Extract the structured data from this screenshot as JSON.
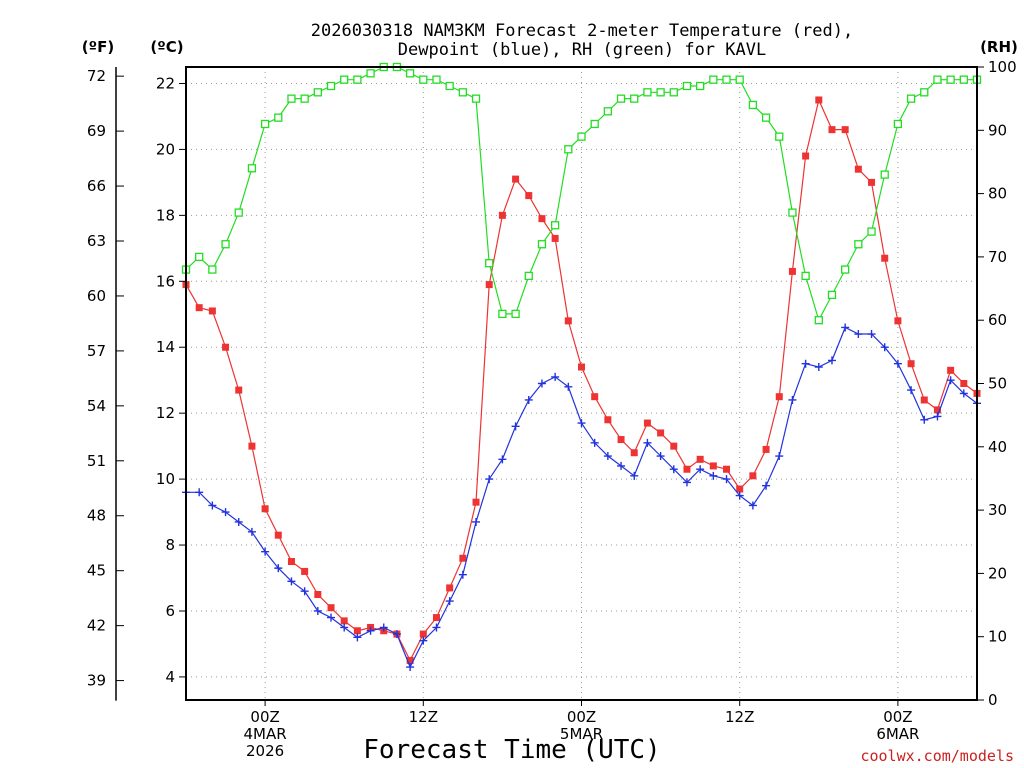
{
  "chart_data": {
    "type": "line",
    "title": "2026030318 NAM3KM Forecast 2-meter Temperature (red),",
    "subtitle": "Dewpoint (blue), RH (green) for KAVL",
    "xlabel": "Forecast Time (UTC)",
    "credit": "coolwx.com/models",
    "unit_labels": {
      "fahrenheit": "(ºF)",
      "celsius": "(ºC)",
      "rh": "(RH)"
    },
    "xlim_hours": [
      -6,
      54
    ],
    "x_ticks": [
      {
        "hour": 0,
        "lines": [
          "00Z",
          "4MAR",
          "2026"
        ]
      },
      {
        "hour": 12,
        "lines": [
          "12Z"
        ]
      },
      {
        "hour": 24,
        "lines": [
          "00Z",
          "5MAR"
        ]
      },
      {
        "hour": 36,
        "lines": [
          "12Z"
        ]
      },
      {
        "hour": 48,
        "lines": [
          "00Z",
          "6MAR"
        ]
      }
    ],
    "y_celsius": {
      "range": [
        3.3,
        22.5
      ],
      "ticks": [
        "4",
        "6",
        "8",
        "10",
        "12",
        "14",
        "16",
        "18",
        "20",
        "22"
      ]
    },
    "y_fahrenheit": {
      "ticks": [
        "39",
        "42",
        "45",
        "48",
        "51",
        "54",
        "57",
        "60",
        "63",
        "66",
        "69",
        "72"
      ]
    },
    "y_rh": {
      "range": [
        0,
        100
      ],
      "ticks": [
        "0",
        "10",
        "20",
        "30",
        "40",
        "50",
        "60",
        "70",
        "80",
        "90",
        "100"
      ]
    },
    "colors": {
      "temperature": "#ee3333",
      "dewpoint": "#2233dd",
      "rh": "#22dd22",
      "grid": "#999999"
    },
    "series": [
      {
        "name": "Temperature (red)",
        "units": "C",
        "start_hour": -6,
        "step_hours": 1,
        "values": [
          15.9,
          15.2,
          15.1,
          14.0,
          12.7,
          11.0,
          9.1,
          8.3,
          7.5,
          7.2,
          6.5,
          6.1,
          5.7,
          5.4,
          5.5,
          5.4,
          5.3,
          4.5,
          5.3,
          5.8,
          6.7,
          7.6,
          9.3,
          15.9,
          18.0,
          19.1,
          18.6,
          17.9,
          17.3,
          14.8,
          13.4,
          12.5,
          11.8,
          11.2,
          10.8,
          11.7,
          11.4,
          11.0,
          10.3,
          10.6,
          10.4,
          10.3,
          9.7,
          10.1,
          10.9,
          12.5,
          16.3,
          19.8,
          21.5,
          20.6,
          20.6,
          19.4,
          19.0,
          16.7,
          14.8,
          13.5,
          12.4,
          12.1,
          13.3,
          12.9,
          12.6
        ]
      },
      {
        "name": "Dewpoint (blue)",
        "units": "C",
        "start_hour": -6,
        "step_hours": 1,
        "values": [
          9.6,
          9.6,
          9.2,
          9.0,
          8.7,
          8.4,
          7.8,
          7.3,
          6.9,
          6.6,
          6.0,
          5.8,
          5.5,
          5.2,
          5.4,
          5.5,
          5.3,
          4.3,
          5.1,
          5.5,
          6.3,
          7.1,
          8.7,
          10.0,
          10.6,
          11.6,
          12.4,
          12.9,
          13.1,
          12.8,
          11.7,
          11.1,
          10.7,
          10.4,
          10.1,
          11.1,
          10.7,
          10.3,
          9.9,
          10.3,
          10.1,
          10.0,
          9.5,
          9.2,
          9.8,
          10.7,
          12.4,
          13.5,
          13.4,
          13.6,
          14.6,
          14.4,
          14.4,
          14.0,
          13.5,
          12.7,
          11.8,
          11.9,
          13.0,
          12.6,
          12.3
        ]
      },
      {
        "name": "RH (green)",
        "units": "%",
        "start_hour": -6,
        "step_hours": 1,
        "values": [
          68,
          70,
          68,
          72,
          77,
          84,
          91,
          92,
          95,
          95,
          96,
          97,
          98,
          98,
          99,
          100,
          100,
          99,
          98,
          98,
          97,
          96,
          95,
          69,
          61,
          61,
          67,
          72,
          75,
          87,
          89,
          91,
          93,
          95,
          95,
          96,
          96,
          96,
          97,
          97,
          98,
          98,
          98,
          94,
          92,
          89,
          77,
          67,
          60,
          64,
          68,
          72,
          74,
          83,
          91,
          95,
          96,
          98,
          98,
          98,
          98
        ]
      }
    ]
  }
}
